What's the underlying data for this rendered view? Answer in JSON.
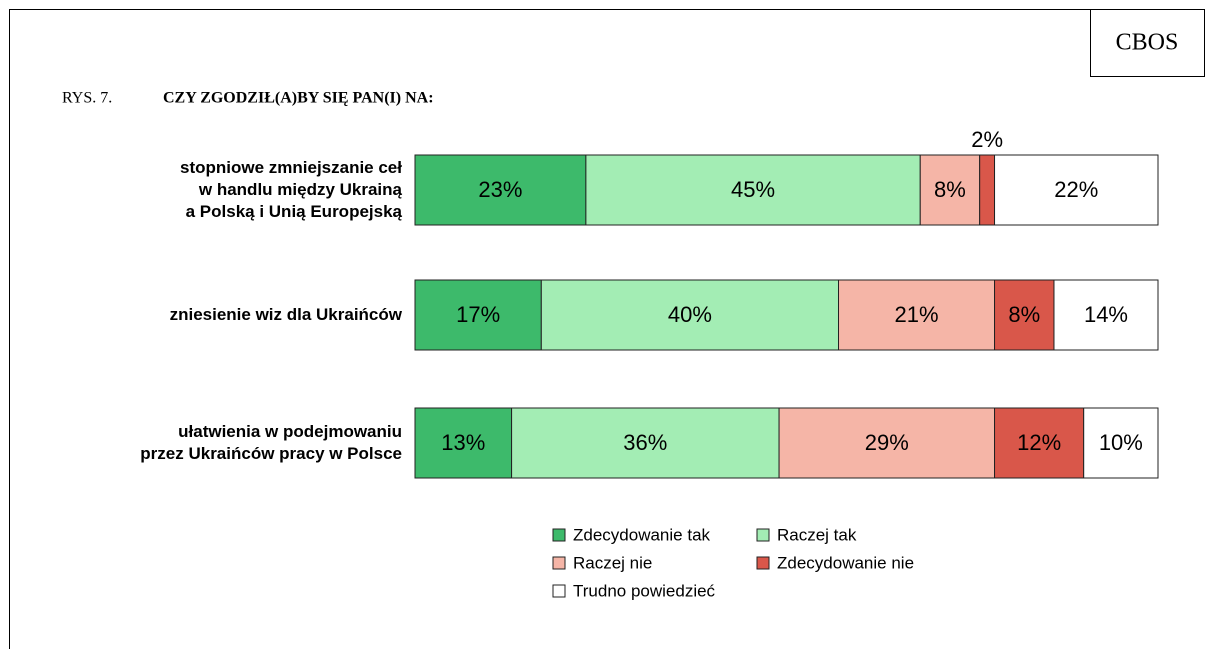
{
  "chart_data": {
    "type": "stacked_barh",
    "source": "CBOS",
    "figure_label": "RYS. 7.",
    "title": "CZY ZGODZIŁ(A)BY SIĘ PAN(I) NA:",
    "categories": [
      "stopniowe zmniejszanie ceł\nw handlu między Ukrainą\na Polską i Unią Europejską",
      "zniesienie wiz dla Ukraińców",
      "ułatwienia w podejmowaniu\nprzez Ukraińców pracy w Polsce"
    ],
    "xlim": [
      0,
      100
    ],
    "series": [
      {
        "name": "Zdecydowanie tak",
        "color": "#3dba6b",
        "values": [
          23,
          17,
          13
        ],
        "value_labels": [
          "23%",
          "17%",
          "13%"
        ]
      },
      {
        "name": "Raczej tak",
        "color": "#a3edb4",
        "values": [
          45,
          40,
          36
        ],
        "value_labels": [
          "45%",
          "40%",
          "36%"
        ]
      },
      {
        "name": "Raczej nie",
        "color": "#f5b5a7",
        "values": [
          8,
          21,
          29
        ],
        "value_labels": [
          "8%",
          "21%",
          "29%"
        ]
      },
      {
        "name": "Zdecydowanie nie",
        "color": "#d9574a",
        "values": [
          2,
          8,
          12
        ],
        "value_labels": [
          "2%",
          "8%",
          "12%"
        ]
      },
      {
        "name": "Trudno powiedzieć",
        "color": "#ffffff",
        "values": [
          22,
          14,
          10
        ],
        "value_labels": [
          "22%",
          "14%",
          "10%"
        ]
      }
    ]
  }
}
